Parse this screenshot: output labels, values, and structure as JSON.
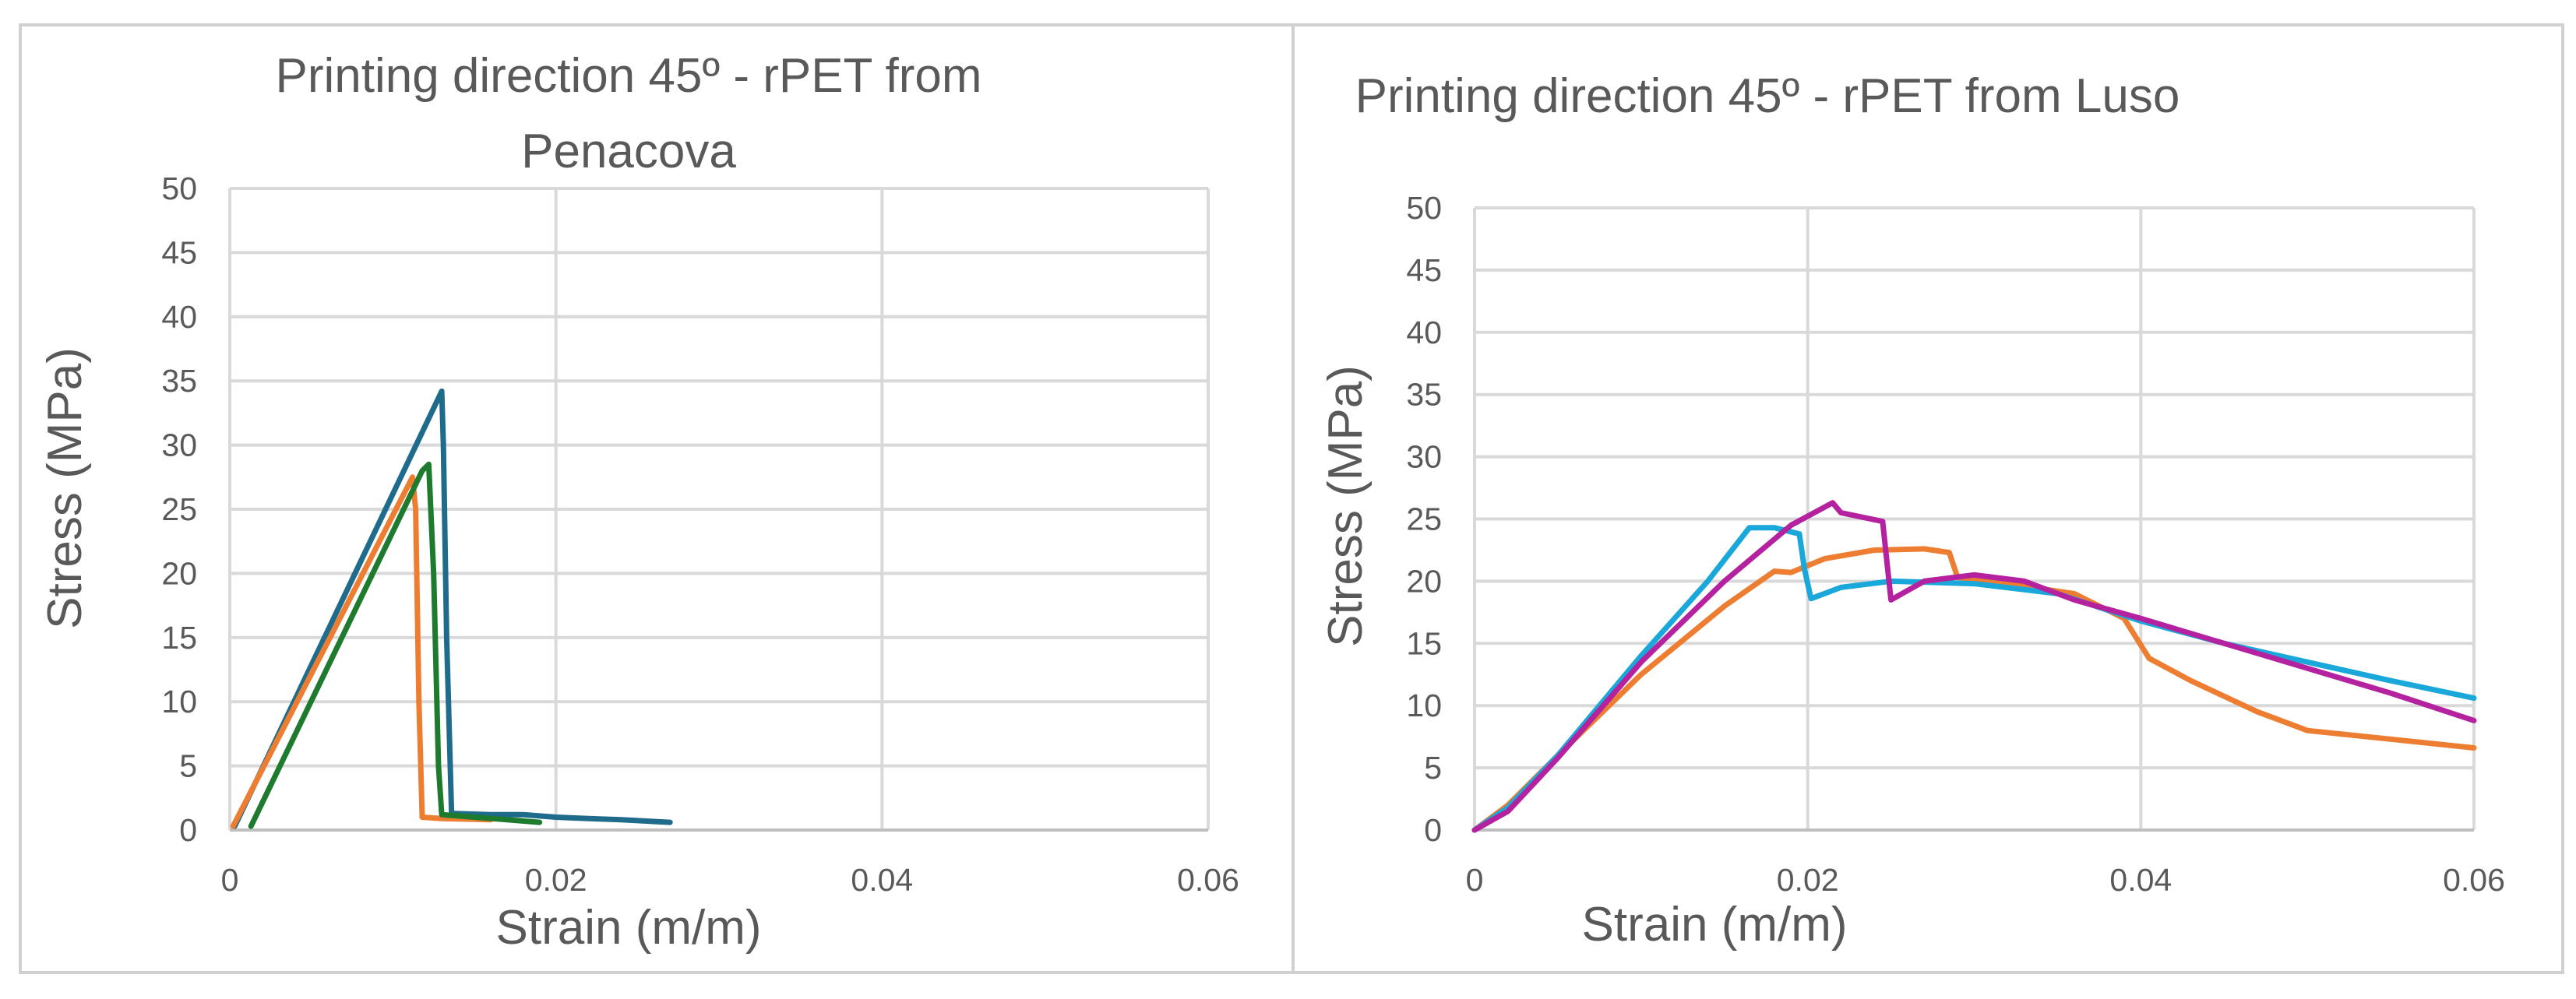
{
  "chart_data": [
    {
      "type": "line",
      "title_lines": [
        "Printing direction 45º  - rPET from",
        "Penacova"
      ],
      "xlabel": "Strain (m/m)",
      "ylabel": "Stress (MPa)",
      "xlim": [
        0,
        0.06
      ],
      "ylim": [
        0,
        50
      ],
      "x_ticks": [
        "0",
        "0.02",
        "0.04",
        "0.06"
      ],
      "y_ticks": [
        "0",
        "5",
        "10",
        "15",
        "20",
        "25",
        "30",
        "35",
        "40",
        "45",
        "50"
      ],
      "grid": true,
      "legend": "none",
      "series": [
        {
          "color": "#1f6b8c",
          "x": [
            0.0003,
            0.013,
            0.0131,
            0.0133,
            0.0136,
            0.016,
            0.018,
            0.02,
            0.022,
            0.024,
            0.027
          ],
          "y": [
            0.3,
            34.2,
            30.0,
            15.0,
            1.3,
            1.2,
            1.2,
            1.0,
            0.9,
            0.8,
            0.6
          ]
        },
        {
          "color": "#ed7d31",
          "x": [
            0.0002,
            0.0112,
            0.0114,
            0.0116,
            0.0118,
            0.013,
            0.016
          ],
          "y": [
            0.3,
            27.5,
            25.0,
            10.0,
            1.0,
            0.9,
            0.8
          ]
        },
        {
          "color": "#1e7b2e",
          "x": [
            0.0013,
            0.0118,
            0.0122,
            0.0125,
            0.0128,
            0.013,
            0.015,
            0.017,
            0.019
          ],
          "y": [
            0.3,
            28.0,
            28.5,
            20.0,
            5.0,
            1.2,
            1.0,
            0.8,
            0.6
          ]
        }
      ]
    },
    {
      "type": "line",
      "title_lines": [
        "Printing direction 45º - rPET from Luso"
      ],
      "xlabel": "Strain (m/m)",
      "ylabel": "Stress (MPa)",
      "xlim": [
        0,
        0.06
      ],
      "ylim": [
        0,
        50
      ],
      "x_ticks": [
        "0",
        "0.02",
        "0.04",
        "0.06"
      ],
      "y_ticks": [
        "0",
        "5",
        "10",
        "15",
        "20",
        "25",
        "30",
        "35",
        "40",
        "45",
        "50"
      ],
      "grid": true,
      "legend": "none",
      "series": [
        {
          "color": "#ed7d31",
          "x": [
            0,
            0.002,
            0.005,
            0.01,
            0.015,
            0.018,
            0.019,
            0.021,
            0.024,
            0.027,
            0.0285,
            0.029,
            0.031,
            0.036,
            0.039,
            0.0405,
            0.043,
            0.047,
            0.05,
            0.055,
            0.06
          ],
          "y": [
            0,
            2.0,
            6.0,
            12.5,
            18.0,
            20.8,
            20.7,
            21.8,
            22.5,
            22.6,
            22.3,
            20.3,
            20.0,
            19.0,
            17.0,
            13.8,
            12.0,
            9.5,
            8.0,
            7.3,
            6.6
          ]
        },
        {
          "color": "#1aa7d9",
          "x": [
            0,
            0.002,
            0.005,
            0.01,
            0.014,
            0.0165,
            0.018,
            0.0195,
            0.0198,
            0.0202,
            0.022,
            0.025,
            0.03,
            0.035,
            0.04,
            0.045,
            0.05,
            0.055,
            0.06
          ],
          "y": [
            0,
            1.8,
            6.0,
            14.0,
            20.0,
            24.3,
            24.3,
            23.8,
            21.0,
            18.6,
            19.5,
            20.0,
            19.8,
            19.0,
            16.8,
            15.0,
            13.5,
            12.0,
            10.6
          ]
        },
        {
          "color": "#b4229f",
          "x": [
            0,
            0.002,
            0.005,
            0.01,
            0.015,
            0.019,
            0.0215,
            0.022,
            0.0245,
            0.0248,
            0.025,
            0.027,
            0.03,
            0.033,
            0.036,
            0.04,
            0.045,
            0.05,
            0.055,
            0.06
          ],
          "y": [
            0,
            1.5,
            5.8,
            13.5,
            20.0,
            24.5,
            26.3,
            25.5,
            24.8,
            21.0,
            18.5,
            20.0,
            20.5,
            20.0,
            18.5,
            17.0,
            15.0,
            13.0,
            11.0,
            8.8
          ]
        }
      ]
    }
  ]
}
